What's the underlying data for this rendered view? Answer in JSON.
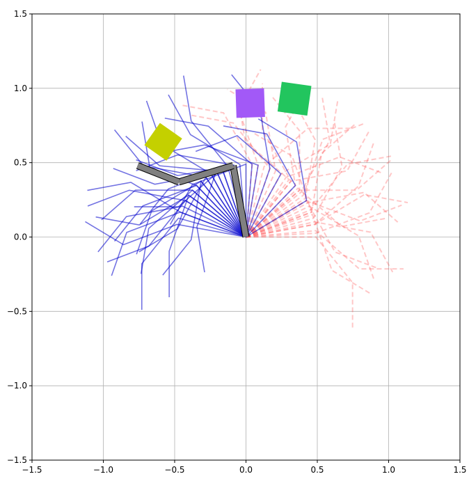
{
  "chart_data": {
    "type": "line",
    "title": "",
    "xlabel": "",
    "ylabel": "",
    "xlim": [
      -1.5,
      1.5
    ],
    "ylim": [
      -1.5,
      1.5
    ],
    "grid": true,
    "xticks": [
      "−1.5",
      "−1.0",
      "−0.5",
      "0.0",
      "0.5",
      "1.0",
      "1.5"
    ],
    "yticks": [
      "−1.5",
      "−1.0",
      "−0.5",
      "0.0",
      "0.5",
      "1.0",
      "1.5"
    ],
    "xtick_values": [
      -1.5,
      -1.0,
      -0.5,
      0.0,
      0.5,
      1.0,
      1.5
    ],
    "ytick_values": [
      -1.5,
      -1.0,
      -0.5,
      0.0,
      0.5,
      1.0,
      1.5
    ],
    "arm_base": [
      0,
      0
    ],
    "link_lengths": [
      0.49,
      0.4,
      0.31
    ],
    "current_arm": {
      "points": [
        [
          0,
          0
        ],
        [
          -0.09,
          0.48
        ],
        [
          -0.47,
          0.37
        ],
        [
          -0.76,
          0.48
        ]
      ],
      "color": "#808080"
    },
    "blue_configs_deg": [
      [
        100,
        170,
        200
      ],
      [
        95,
        150,
        120
      ],
      [
        110,
        200,
        230
      ],
      [
        120,
        190,
        160
      ],
      [
        130,
        210,
        250
      ],
      [
        140,
        180,
        220
      ],
      [
        150,
        230,
        200
      ],
      [
        160,
        200,
        250
      ],
      [
        105,
        130,
        100
      ],
      [
        80,
        160,
        190
      ],
      [
        125,
        240,
        210
      ],
      [
        135,
        160,
        130
      ],
      [
        145,
        250,
        270
      ],
      [
        155,
        190,
        230
      ],
      [
        115,
        175,
        140
      ],
      [
        90,
        200,
        240
      ],
      [
        170,
        200,
        150
      ],
      [
        140,
        220,
        260
      ],
      [
        100,
        190,
        160
      ],
      [
        120,
        150,
        110
      ],
      [
        130,
        260,
        230
      ],
      [
        150,
        170,
        200
      ],
      [
        110,
        220,
        180
      ],
      [
        165,
        230,
        270
      ],
      [
        85,
        140,
        170
      ],
      [
        135,
        200,
        230
      ],
      [
        125,
        170,
        100
      ],
      [
        160,
        150,
        190
      ],
      [
        145,
        210,
        170
      ],
      [
        115,
        250,
        280
      ],
      [
        60,
        140,
        200
      ],
      [
        45,
        120,
        170
      ],
      [
        70,
        100,
        130
      ],
      [
        30,
        100,
        150
      ]
    ],
    "red_configs_deg": [
      [
        10,
        40,
        70
      ],
      [
        20,
        80,
        40
      ],
      [
        30,
        -20,
        20
      ],
      [
        40,
        90,
        130
      ],
      [
        50,
        10,
        60
      ],
      [
        5,
        -40,
        0
      ],
      [
        15,
        60,
        100
      ],
      [
        25,
        -30,
        -70
      ],
      [
        35,
        70,
        20
      ],
      [
        45,
        100,
        60
      ],
      [
        55,
        20,
        -20
      ],
      [
        0,
        -50,
        -90
      ],
      [
        10,
        30,
        -10
      ],
      [
        20,
        110,
        150
      ],
      [
        30,
        -60,
        -20
      ],
      [
        40,
        0,
        40
      ],
      [
        50,
        120,
        90
      ],
      [
        60,
        30,
        80
      ],
      [
        70,
        130,
        170
      ],
      [
        80,
        110,
        60
      ],
      [
        12,
        -10,
        -60
      ],
      [
        22,
        50,
        10
      ],
      [
        32,
        80,
        120
      ],
      [
        42,
        -40,
        10
      ],
      [
        52,
        140,
        100
      ],
      [
        65,
        100,
        150
      ],
      [
        75,
        40,
        0
      ],
      [
        85,
        120,
        170
      ],
      [
        3,
        20,
        60
      ],
      [
        18,
        -70,
        -30
      ],
      [
        28,
        10,
        -40
      ],
      [
        38,
        60,
        100
      ]
    ],
    "blue_color": "#0000cc",
    "red_color": "#ff4444",
    "obstacles": [
      {
        "name": "yellow-square",
        "center": [
          -0.58,
          0.64
        ],
        "size": 0.19,
        "angle_deg": -35,
        "color": "#c4d000"
      },
      {
        "name": "purple-square",
        "center": [
          0.03,
          0.9
        ],
        "size": 0.2,
        "angle_deg": 2,
        "color": "#a259f7"
      },
      {
        "name": "green-square",
        "center": [
          0.34,
          0.93
        ],
        "size": 0.21,
        "angle_deg": -8,
        "color": "#22c55e"
      }
    ]
  }
}
